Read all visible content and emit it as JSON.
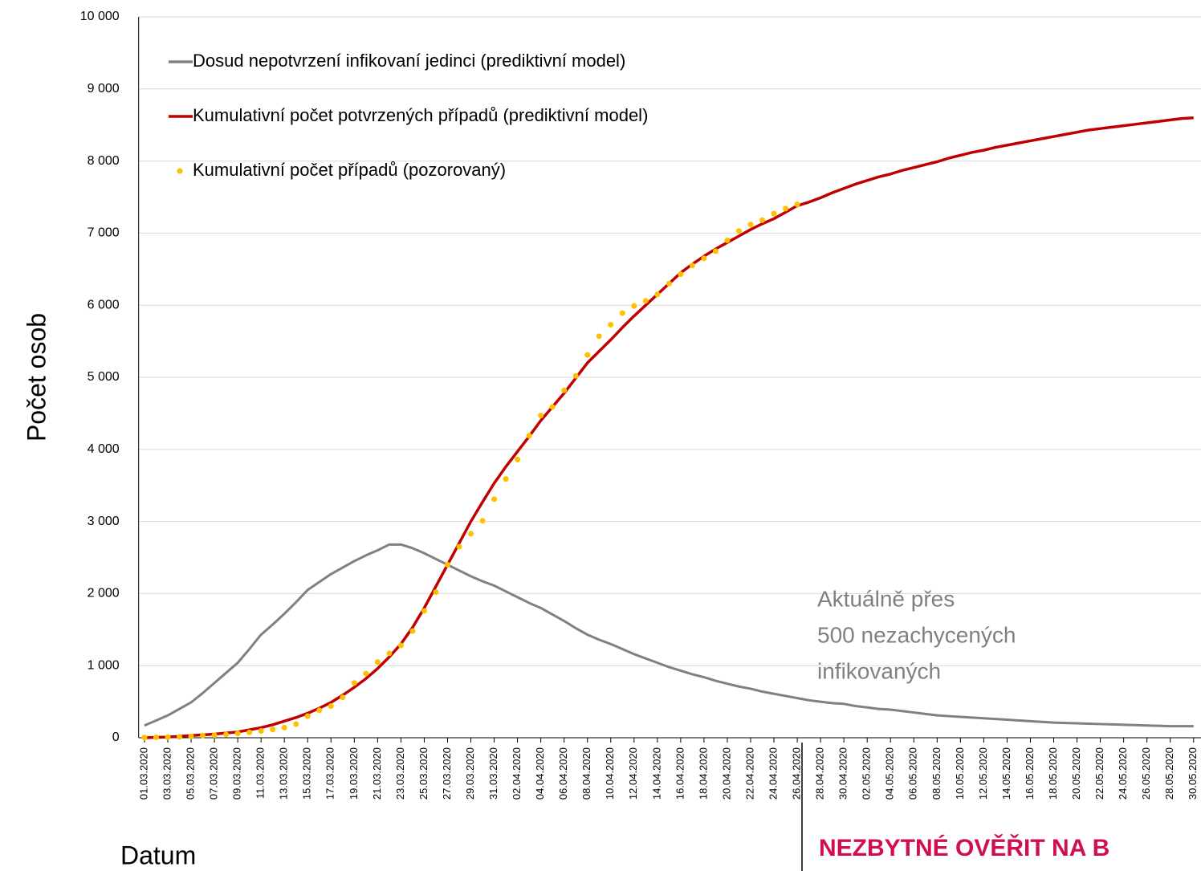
{
  "chart_data": {
    "type": "line",
    "y_label": "Počet osob",
    "x_label": "Datum",
    "annotation": [
      "Aktuálně přes",
      "500 nezachycených",
      "infikovaných"
    ],
    "notice": "NEZBYTNÉ OVĚŘIT NA B",
    "legend": "upper left",
    "grid": true,
    "ylim": [
      0,
      10000
    ],
    "yticks": [
      0,
      {
        "value": 1000,
        "label": "1 000"
      },
      {
        "value": 2000,
        "label": "2 000"
      },
      {
        "value": 3000,
        "label": "3 000"
      },
      {
        "value": 4000,
        "label": "4 000"
      },
      {
        "value": 5000,
        "label": "5 000"
      },
      {
        "value": 6000,
        "label": "6 000"
      },
      {
        "value": 7000,
        "label": "7 000"
      },
      {
        "value": 8000,
        "label": "8 000"
      },
      {
        "value": 9000,
        "label": "9 000"
      },
      {
        "value": 10000,
        "label": "10 000"
      }
    ],
    "categories": [
      "01.03.2020",
      null,
      "03.03.2020",
      null,
      "05.03.2020",
      null,
      "07.03.2020",
      null,
      "09.03.2020",
      null,
      "11.03.2020",
      null,
      "13.03.2020",
      null,
      "15.03.2020",
      null,
      "17.03.2020",
      null,
      "19.03.2020",
      null,
      "21.03.2020",
      null,
      "23.03.2020",
      null,
      "25.03.2020",
      null,
      "27.03.2020",
      null,
      "29.03.2020",
      null,
      "31.03.2020",
      null,
      "02.04.2020",
      null,
      "04.04.2020",
      null,
      "06.04.2020",
      null,
      "08.04.2020",
      null,
      "10.04.2020",
      null,
      "12.04.2020",
      null,
      "14.04.2020",
      null,
      "16.04.2020",
      null,
      "18.04.2020",
      null,
      "20.04.2020",
      null,
      "22.04.2020",
      null,
      "24.04.2020",
      null,
      "26.04.2020",
      null,
      "28.04.2020",
      null,
      "30.04.2020",
      null,
      "02.05.2020",
      null,
      "04.05.2020",
      null,
      "06.05.2020",
      null,
      "08.05.2020",
      null,
      "10.05.2020",
      null,
      "12.05.2020",
      null,
      "14.05.2020",
      null,
      "16.05.2020",
      null,
      "18.05.2020",
      null,
      "20.05.2020",
      null,
      "22.05.2020",
      null,
      "24.05.2020",
      null,
      "26.05.2020",
      null,
      "28.05.2020",
      null,
      "30.05.2020"
    ],
    "series": [
      {
        "name": "Dosud nepotvrzení infikovaní jedinci (prediktivní model)",
        "color": "#808080",
        "marker": "line",
        "values": [
          170,
          240,
          310,
          400,
          490,
          620,
          760,
          900,
          1040,
          1230,
          1430,
          1570,
          1720,
          1880,
          2050,
          2160,
          2270,
          2360,
          2450,
          2530,
          2600,
          2680,
          2680,
          2630,
          2560,
          2480,
          2400,
          2320,
          2240,
          2170,
          2110,
          2030,
          1950,
          1870,
          1800,
          1710,
          1620,
          1520,
          1430,
          1360,
          1300,
          1230,
          1160,
          1100,
          1040,
          980,
          930,
          880,
          840,
          790,
          750,
          710,
          680,
          640,
          610,
          580,
          550,
          520,
          500,
          480,
          470,
          440,
          420,
          400,
          390,
          370,
          350,
          330,
          310,
          300,
          290,
          280,
          270,
          260,
          250,
          240,
          230,
          220,
          210,
          205,
          200,
          195,
          190,
          185,
          180,
          175,
          170,
          165,
          160,
          160,
          160
        ]
      },
      {
        "name": "Kumulativní počet potvrzených případů (prediktivní model)",
        "color": "#c00000",
        "marker": "line",
        "values": [
          0,
          5,
          10,
          20,
          30,
          40,
          50,
          65,
          80,
          110,
          140,
          180,
          230,
          280,
          340,
          410,
          490,
          590,
          700,
          820,
          960,
          1120,
          1300,
          1530,
          1800,
          2100,
          2400,
          2700,
          3000,
          3270,
          3530,
          3760,
          3970,
          4180,
          4400,
          4590,
          4780,
          4990,
          5200,
          5360,
          5520,
          5690,
          5850,
          6000,
          6150,
          6300,
          6450,
          6570,
          6680,
          6780,
          6870,
          6960,
          7050,
          7130,
          7200,
          7290,
          7380,
          7430,
          7490,
          7560,
          7620,
          7680,
          7730,
          7780,
          7820,
          7870,
          7910,
          7950,
          7990,
          8040,
          8080,
          8120,
          8150,
          8190,
          8220,
          8250,
          8280,
          8310,
          8340,
          8370,
          8400,
          8430,
          8450,
          8470,
          8490,
          8510,
          8530,
          8550,
          8570,
          8590,
          8600
        ]
      },
      {
        "name": "Kumulativní počet případů (pozorovaný)",
        "color": "#ffc000",
        "marker": "dot",
        "values": [
          3,
          5,
          8,
          12,
          20,
          30,
          35,
          45,
          60,
          75,
          95,
          115,
          140,
          190,
          300,
          380,
          440,
          560,
          760,
          890,
          1050,
          1170,
          1280,
          1480,
          1760,
          2020,
          2400,
          2650,
          2830,
          3010,
          3310,
          3590,
          3860,
          4190,
          4470,
          4590,
          4820,
          5020,
          5310,
          5570,
          5730,
          5890,
          5990,
          6060,
          6150,
          6300,
          6430,
          6550,
          6650,
          6750,
          6900,
          7030,
          7120,
          7180,
          7270,
          7340,
          7400,
          null,
          null,
          null,
          null,
          null,
          null,
          null,
          null,
          null,
          null,
          null,
          null,
          null,
          null,
          null,
          null,
          null,
          null,
          null,
          null,
          null,
          null,
          null,
          null,
          null,
          null,
          null,
          null,
          null,
          null,
          null,
          null,
          null,
          null
        ]
      }
    ]
  }
}
